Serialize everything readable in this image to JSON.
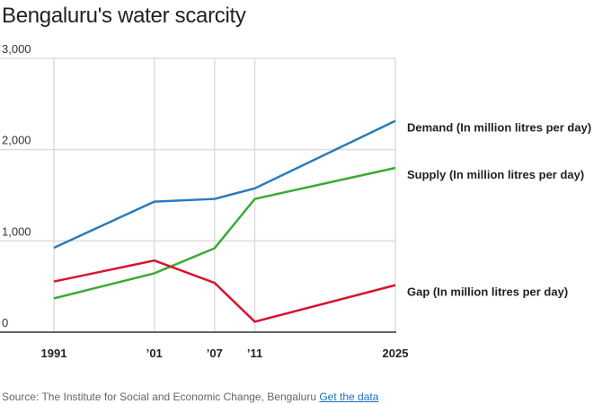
{
  "chart_data": {
    "type": "line",
    "title": "Bengaluru's water scarcity",
    "x": [
      1991,
      2001,
      2007,
      2011,
      2025
    ],
    "x_tick_labels": [
      "1991",
      "’01",
      "’07",
      "’11",
      "2025"
    ],
    "ylim": [
      0,
      3000
    ],
    "y_ticks": [
      0,
      1000,
      2000,
      3000
    ],
    "y_tick_labels": [
      "0",
      "1,000",
      "2,000",
      "3,000"
    ],
    "grid": true,
    "legend_placement": "right, end-of-line labels",
    "series": [
      {
        "name": "Demand (In million litres per day)",
        "color": "#2b7bba",
        "values": [
          925,
          1430,
          1460,
          1575,
          2315
        ]
      },
      {
        "name": "Supply (In million litres per day)",
        "color": "#3aaa35",
        "values": [
          370,
          645,
          920,
          1460,
          1800
        ]
      },
      {
        "name": "Gap (In million litres per day)",
        "color": "#d7152f",
        "values": [
          555,
          785,
          540,
          115,
          515
        ]
      }
    ]
  },
  "footer": {
    "source": "Source: The Institute for Social and Economic Change, Bengaluru",
    "link": "Get the data"
  }
}
